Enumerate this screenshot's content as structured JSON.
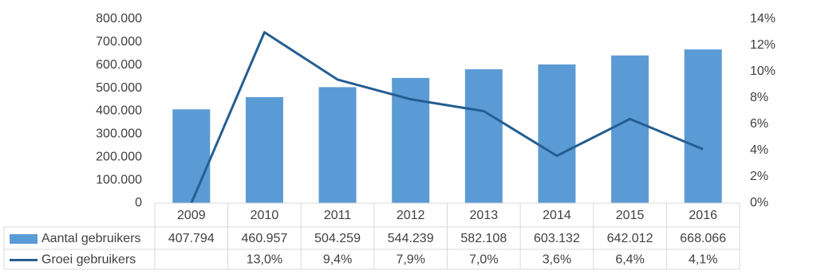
{
  "chart_data": {
    "type": "bar",
    "categories": [
      "2009",
      "2010",
      "2011",
      "2012",
      "2013",
      "2014",
      "2015",
      "2016"
    ],
    "series": [
      {
        "name": "Aantal gebruikers",
        "type": "bar",
        "color": "#5b9bd5",
        "values": [
          407794,
          460957,
          504259,
          544239,
          582108,
          603132,
          642012,
          668066
        ],
        "value_labels": [
          "407.794",
          "460.957",
          "504.259",
          "544.239",
          "582.108",
          "603.132",
          "642.012",
          "668.066"
        ]
      },
      {
        "name": "Groei gebruikers",
        "type": "line",
        "axis": "y2",
        "color": "#255e91",
        "values": [
          0,
          13.0,
          9.4,
          7.9,
          7.0,
          3.6,
          6.4,
          4.1
        ],
        "value_labels": [
          null,
          "13,0%",
          "9,4%",
          "7,9%",
          "7,0%",
          "3,6%",
          "6,4%",
          "4,1%"
        ]
      }
    ],
    "ylim": [
      0,
      800000
    ],
    "yticks": [
      0,
      {
        "value": 100000,
        "label": "100.000"
      },
      {
        "value": 200000,
        "label": "200.000"
      },
      {
        "value": 300000,
        "label": "300.000"
      },
      {
        "value": 400000,
        "label": "400.000"
      },
      {
        "value": 500000,
        "label": "500.000"
      },
      {
        "value": 600000,
        "label": "600.000"
      },
      {
        "value": 700000,
        "label": "700.000"
      },
      {
        "value": 800000,
        "label": "800.000"
      }
    ],
    "y2lim": [
      0,
      14
    ],
    "y2ticks": [
      {
        "value": 0,
        "label": "0%"
      },
      {
        "value": 2,
        "label": "2%"
      },
      {
        "value": 4,
        "label": "4%"
      },
      {
        "value": 6,
        "label": "6%"
      },
      {
        "value": 8,
        "label": "8%"
      },
      {
        "value": 10,
        "label": "10%"
      },
      {
        "value": 12,
        "label": "12%"
      },
      {
        "value": 14,
        "label": "14%"
      }
    ],
    "data_table": true
  }
}
